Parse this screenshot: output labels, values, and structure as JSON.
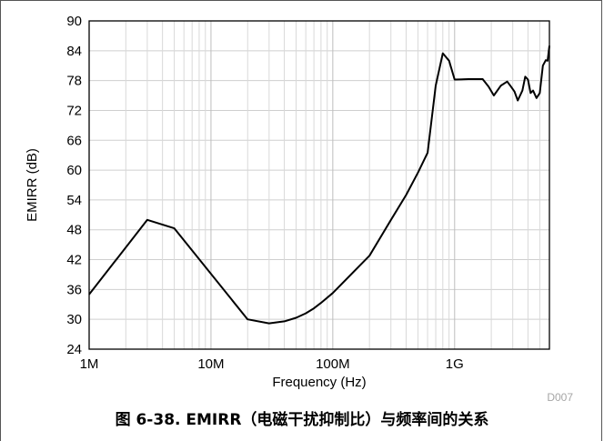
{
  "figure": {
    "caption": "图 6-38. EMIRR（电磁干扰抑制比）与频率间的关系",
    "code": "D007"
  },
  "chart_data": {
    "type": "line",
    "title": "",
    "xlabel": "Frequency (Hz)",
    "ylabel": "EMIRR (dB)",
    "x_scale": "log",
    "xlim": [
      1000000,
      6000000000
    ],
    "ylim": [
      24,
      90
    ],
    "grid": true,
    "x_tick_values": [
      1000000,
      10000000,
      100000000,
      1000000000
    ],
    "x_tick_labels": [
      "1M",
      "10M",
      "100M",
      "1G"
    ],
    "y_tick_values": [
      24,
      30,
      36,
      42,
      48,
      54,
      60,
      66,
      72,
      78,
      84,
      90
    ],
    "y_tick_labels": [
      "24",
      "30",
      "36",
      "42",
      "48",
      "54",
      "60",
      "66",
      "72",
      "78",
      "84",
      "90"
    ],
    "series": [
      {
        "color": "#000000",
        "x": [
          1000000,
          3000000,
          5000000,
          20000000,
          30000000,
          40000000,
          50000000,
          60000000,
          70000000,
          80000000,
          100000000,
          200000000,
          300000000,
          400000000,
          500000000,
          600000000,
          700000000,
          800000000,
          900000000,
          1000000000,
          1300000000,
          1700000000,
          1900000000,
          2100000000,
          2400000000,
          2700000000,
          2900000000,
          3100000000,
          3300000000,
          3600000000,
          3800000000,
          4000000000,
          4200000000,
          4400000000,
          4700000000,
          5000000000,
          5300000000,
          5600000000,
          5800000000,
          6000000000
        ],
        "y": [
          35,
          50,
          48.3,
          30,
          29.2,
          29.6,
          30.3,
          31.2,
          32.2,
          33.3,
          35.3,
          42.8,
          50,
          55,
          59.5,
          63.5,
          77,
          83.5,
          82,
          78.2,
          78.3,
          78.3,
          76.8,
          75,
          77,
          77.8,
          76.8,
          75.8,
          74,
          76,
          78.8,
          78.2,
          75.5,
          76,
          74.5,
          75.5,
          81,
          82.1,
          82,
          85
        ]
      }
    ]
  }
}
